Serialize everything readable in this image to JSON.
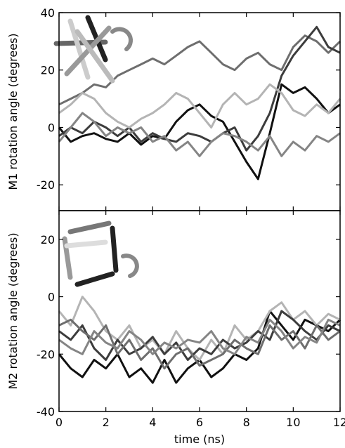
{
  "chart_data": [
    {
      "type": "line",
      "y_label": "M1 rotation angle (degrees)",
      "x": [
        0,
        0.5,
        1,
        1.5,
        2,
        2.5,
        3,
        3.5,
        4,
        4.5,
        5,
        5.5,
        6,
        6.5,
        7,
        7.5,
        8,
        8.5,
        9,
        9.5,
        10,
        10.5,
        11,
        11.5,
        12
      ],
      "xlim": [
        0,
        12
      ],
      "xticks": [
        0,
        2,
        4,
        6,
        8,
        10,
        12
      ],
      "ylim": [
        -29,
        40
      ],
      "yticks": [
        -20,
        0,
        20,
        40
      ],
      "series": [
        {
          "color": "#6e6e6e",
          "values": [
            8,
            10,
            12,
            15,
            14,
            18,
            20,
            22,
            24,
            22,
            25,
            28,
            30,
            26,
            22,
            20,
            24,
            26,
            22,
            20,
            28,
            32,
            30,
            26,
            30
          ]
        },
        {
          "color": "#111111",
          "values": [
            0,
            -5,
            -3,
            -2,
            -4,
            -5,
            -2,
            -6,
            -3,
            -4,
            2,
            6,
            8,
            4,
            2,
            -5,
            -12,
            -18,
            -2,
            15,
            12,
            14,
            10,
            5,
            8
          ]
        },
        {
          "color": "#3c3c3c",
          "values": [
            -3,
            0,
            -2,
            2,
            0,
            -3,
            0,
            -5,
            -2,
            -4,
            -5,
            -2,
            -3,
            -5,
            -2,
            0,
            -8,
            -3,
            5,
            18,
            25,
            30,
            35,
            28,
            26
          ]
        },
        {
          "color": "#b4b4b4",
          "values": [
            5,
            8,
            12,
            10,
            5,
            2,
            0,
            3,
            5,
            8,
            12,
            10,
            5,
            0,
            8,
            12,
            8,
            10,
            15,
            12,
            6,
            4,
            8,
            5,
            10
          ]
        },
        {
          "color": "#858585",
          "values": [
            -5,
            0,
            5,
            2,
            -3,
            0,
            -2,
            0,
            -5,
            -3,
            -8,
            -5,
            -10,
            -5,
            -2,
            -3,
            -5,
            -8,
            -3,
            -10,
            -5,
            -8,
            -3,
            -5,
            -2
          ]
        }
      ]
    },
    {
      "type": "line",
      "y_label": "M2 rotation angle (degrees)",
      "x_label": "time (ns)",
      "x": [
        0,
        0.5,
        1,
        1.5,
        2,
        2.5,
        3,
        3.5,
        4,
        4.5,
        5,
        5.5,
        6,
        6.5,
        7,
        7.5,
        8,
        8.5,
        9,
        9.5,
        10,
        10.5,
        11,
        11.5,
        12
      ],
      "xlim": [
        0,
        12
      ],
      "xticks": [
        0,
        2,
        4,
        6,
        8,
        10,
        12
      ],
      "ylim": [
        -40,
        30
      ],
      "yticks": [
        -40,
        -20,
        0,
        20
      ],
      "series": [
        {
          "color": "#111111",
          "values": [
            -20,
            -25,
            -28,
            -22,
            -25,
            -20,
            -28,
            -25,
            -30,
            -22,
            -30,
            -25,
            -22,
            -28,
            -25,
            -20,
            -22,
            -18,
            -5,
            -10,
            -15,
            -8,
            -10,
            -12,
            -8
          ]
        },
        {
          "color": "#b4b4b4",
          "values": [
            -5,
            -10,
            0,
            -5,
            -12,
            -15,
            -10,
            -18,
            -15,
            -20,
            -12,
            -18,
            -22,
            -15,
            -20,
            -10,
            -15,
            -12,
            -5,
            -2,
            -8,
            -5,
            -10,
            -6,
            -8
          ]
        },
        {
          "color": "#3c3c3c",
          "values": [
            -12,
            -15,
            -10,
            -18,
            -22,
            -15,
            -20,
            -18,
            -14,
            -20,
            -16,
            -22,
            -18,
            -20,
            -15,
            -18,
            -16,
            -12,
            -15,
            -5,
            -8,
            -12,
            -15,
            -10,
            -12
          ]
        },
        {
          "color": "#6e6e6e",
          "values": [
            -10,
            -8,
            -12,
            -15,
            -10,
            -20,
            -15,
            -22,
            -18,
            -25,
            -20,
            -18,
            -24,
            -22,
            -20,
            -15,
            -18,
            -20,
            -10,
            -15,
            -12,
            -18,
            -10,
            -15,
            -12
          ]
        },
        {
          "color": "#858585",
          "values": [
            -15,
            -18,
            -20,
            -12,
            -16,
            -18,
            -12,
            -15,
            -20,
            -16,
            -18,
            -15,
            -16,
            -12,
            -18,
            -20,
            -14,
            -16,
            -8,
            -12,
            -18,
            -14,
            -16,
            -8,
            -10
          ]
        }
      ]
    }
  ]
}
